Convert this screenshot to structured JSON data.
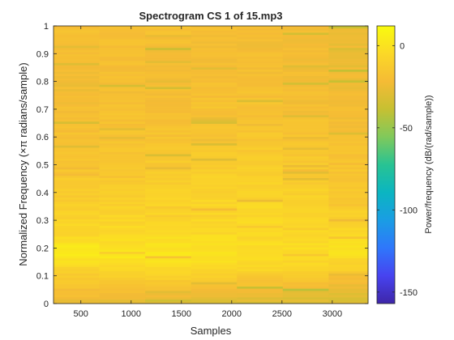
{
  "figure": {
    "background": "#ffffff"
  },
  "chart_data": {
    "type": "heatmap",
    "title": "Spectrogram CS 1 of 15.mp3",
    "xlabel": "Samples",
    "ylabel": "Normalized Frequency  (×π radians/sample)",
    "xlim": [
      228,
      3356
    ],
    "ylim": [
      0,
      1
    ],
    "xticks": [
      500,
      1000,
      1500,
      2000,
      2500,
      3000
    ],
    "xtick_labels": [
      "500",
      "1000",
      "1500",
      "2000",
      "2500",
      "3000"
    ],
    "yticks": [
      0,
      0.1,
      0.2,
      0.3,
      0.4,
      0.5,
      0.6,
      0.7,
      0.8,
      0.9,
      1
    ],
    "ytick_labels": [
      "0",
      "0.1",
      "0.2",
      "0.3",
      "0.4",
      "0.5",
      "0.6",
      "0.7",
      "0.8",
      "0.9",
      "1"
    ],
    "time_segments": [
      456,
      912,
      1368,
      1824,
      2280,
      2736,
      3192
    ],
    "frequency_bins": 128,
    "colormap": "parula",
    "colormap_stops": [
      "#3e26a8",
      "#4743f0",
      "#2f77fb",
      "#1a9de4",
      "#0bb5c1",
      "#28c393",
      "#80c95b",
      "#c6c032",
      "#f5bb35",
      "#fbd827",
      "#f9fb0e"
    ],
    "color_range": [
      -157,
      12
    ],
    "colorbar": {
      "label": "Power/frequency (dB/(rad/sample))",
      "ticks": [
        0,
        -50,
        -100,
        -150
      ],
      "tick_labels": [
        "0",
        "-50",
        "-100",
        "-150"
      ]
    },
    "power_profile_db": {
      "frequency": [
        0,
        0.03,
        0.05,
        0.08,
        0.1,
        0.12,
        0.14,
        0.16,
        0.18,
        0.2,
        0.22,
        0.25,
        0.3,
        0.35,
        0.4,
        0.45,
        0.5,
        0.55,
        0.6,
        0.65,
        0.7,
        0.75,
        0.8,
        0.85,
        0.9,
        0.95,
        1
      ],
      "series": [
        {
          "time": 456,
          "values": [
            -27,
            -22,
            -20,
            -14,
            -13,
            -9,
            -5,
            0,
            4,
            3,
            -2,
            -6,
            -8,
            -11,
            -12,
            -14,
            -16,
            -18,
            -19,
            -20,
            -21,
            -22,
            -23,
            -22,
            -22,
            -20,
            -19
          ]
        },
        {
          "time": 912,
          "values": [
            -28,
            -22,
            -19,
            -13,
            -12,
            -8,
            -4,
            0,
            2,
            2,
            -2,
            -5,
            -7,
            -10,
            -11,
            -13,
            -15,
            -17,
            -18,
            -19,
            -19,
            -20,
            -21,
            -20,
            -20,
            -19,
            -18
          ]
        },
        {
          "time": 1368,
          "values": [
            -30,
            -24,
            -20,
            -13,
            -9,
            -5,
            -2,
            0,
            1,
            0,
            -2,
            -5,
            -7,
            -9,
            -10,
            -12,
            -14,
            -16,
            -17,
            -18,
            -19,
            -20,
            -21,
            -21,
            -21,
            -20,
            -19
          ]
        },
        {
          "time": 1824,
          "values": [
            -30,
            -25,
            -22,
            -16,
            -11,
            -6,
            -3,
            -2,
            -2,
            -2,
            -3,
            -5,
            -6,
            -7,
            -9,
            -10,
            -12,
            -14,
            -16,
            -17,
            -18,
            -19,
            -20,
            -21,
            -21,
            -21,
            -20
          ]
        },
        {
          "time": 2280,
          "values": [
            -31,
            -27,
            -24,
            -18,
            -12,
            -8,
            -5,
            -3,
            -3,
            -3,
            -4,
            -5,
            -6,
            -7,
            -9,
            -10,
            -12,
            -14,
            -16,
            -17,
            -18,
            -19,
            -20,
            -21,
            -21,
            -21,
            -21
          ]
        },
        {
          "time": 2736,
          "values": [
            -32,
            -28,
            -25,
            -19,
            -14,
            -10,
            -7,
            -4,
            -3,
            -3,
            -4,
            -5,
            -6,
            -8,
            -10,
            -12,
            -14,
            -15,
            -17,
            -18,
            -19,
            -20,
            -21,
            -22,
            -22,
            -22,
            -22
          ]
        },
        {
          "time": 3192,
          "values": [
            -33,
            -29,
            -26,
            -22,
            -17,
            -12,
            -9,
            -5,
            -2,
            0,
            -2,
            -6,
            -9,
            -12,
            -14,
            -15,
            -17,
            -19,
            -20,
            -21,
            -22,
            -23,
            -24,
            -25,
            -25,
            -25,
            -26
          ]
        }
      ]
    },
    "grid": false,
    "box": true
  }
}
